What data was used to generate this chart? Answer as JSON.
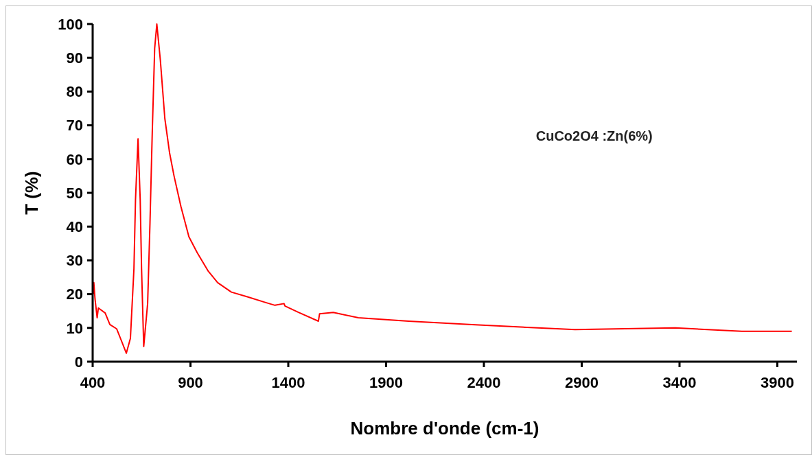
{
  "chart_data": {
    "type": "line",
    "xlabel": "Nombre d'onde (cm-1)",
    "ylabel": "T (%)",
    "annotations": [
      "CuCo2O4 :Zn(6%)"
    ],
    "xlim": [
      400,
      4000
    ],
    "xticks": [
      400,
      900,
      1400,
      1900,
      2400,
      2900,
      3400,
      3900
    ],
    "ylim": [
      0,
      100
    ],
    "yticks": [
      0,
      10,
      20,
      30,
      40,
      50,
      60,
      70,
      80,
      90,
      100
    ],
    "grid": false,
    "marker": "none",
    "line_style": "solid",
    "series": [
      {
        "color": "#ff0000",
        "x": [
          403,
          406,
          412,
          423,
          429,
          464,
          488,
          523,
          547,
          572,
          593,
          611,
          619,
          632,
          643,
          650,
          661,
          681,
          693,
          705,
          717,
          728,
          746,
          769,
          793,
          816,
          851,
          892,
          934,
          991,
          1039,
          1109,
          1191,
          1285,
          1332,
          1378,
          1383,
          1452,
          1554,
          1560,
          1630,
          1758,
          2015,
          2356,
          2866,
          3378,
          3719,
          3974
        ],
        "values": [
          20,
          23.4,
          18.6,
          13,
          15.9,
          14.4,
          11,
          9.7,
          6.2,
          2.5,
          6.9,
          27.5,
          48,
          66,
          48,
          27.5,
          4.5,
          17.2,
          41,
          68.7,
          92.8,
          100,
          89.3,
          72,
          61.9,
          55,
          46,
          37,
          32.3,
          26.8,
          23.4,
          20.6,
          19.2,
          17.5,
          16.7,
          17.2,
          16.5,
          14.6,
          12,
          14.2,
          14.6,
          13,
          12,
          10.9,
          9.5,
          10,
          9,
          9
        ]
      }
    ]
  }
}
